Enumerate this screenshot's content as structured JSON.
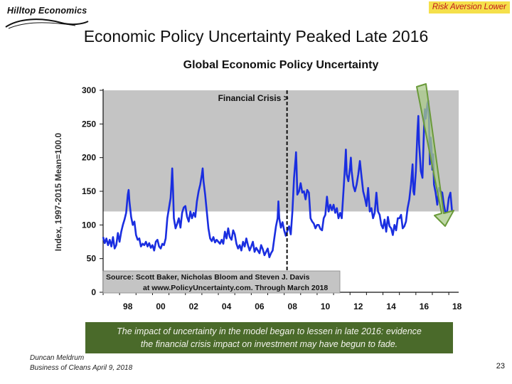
{
  "header": {
    "logo_text": "Hilltop Economics",
    "badge": "Risk Aversion Lower",
    "slide_title": "Economic Policy Uncertainty Peaked Late 2016"
  },
  "caption": {
    "line1": "The impact of uncertainty in the model began to lessen in late 2016: evidence",
    "line2": "the financial crisis impact on investment may have begun to fade."
  },
  "footer": {
    "author": "Duncan Meldrum",
    "event": "Business of Cleans April 9, 2018",
    "page_number": "23"
  },
  "colors": {
    "series": "#1a2ee0",
    "shade": "#c4c4c4",
    "arrow_fill": "#a9c98a",
    "arrow_stroke": "#6a9a3a",
    "badge_bg": "#f5e04b",
    "badge_text": "#c0151b",
    "caption_bg": "#4a6a2a"
  },
  "chart_data": {
    "type": "line",
    "title": "Global Economic Policy Uncertainty",
    "ylabel": "Index, 1997-2015 Mean=100.0",
    "xlabel": "",
    "ylim": [
      0,
      300
    ],
    "xlim": [
      1997.0,
      2018.6
    ],
    "yticks": [
      "0",
      "50",
      "100",
      "150",
      "200",
      "250",
      "300"
    ],
    "xtick_labels": [
      "98",
      "00",
      "02",
      "04",
      "06",
      "08",
      "10",
      "12",
      "14",
      "16",
      "18"
    ],
    "grid": false,
    "shaded_region": {
      "y_from": 120,
      "y_to": 300
    },
    "annotation": {
      "label": "Financial Crisis >",
      "x": 2008.0
    },
    "source_box": [
      "Source: Scott Baker, Nicholas Bloom and Steven J. Davis",
      "at www.PolicyUncertainty.com. Through March 2018"
    ],
    "series": [
      {
        "values": [
          [
            1997.0,
            82
          ],
          [
            1997.1,
            73
          ],
          [
            1997.2,
            80
          ],
          [
            1997.3,
            70
          ],
          [
            1997.4,
            78
          ],
          [
            1997.5,
            68
          ],
          [
            1997.6,
            82
          ],
          [
            1997.7,
            65
          ],
          [
            1997.8,
            70
          ],
          [
            1997.9,
            88
          ],
          [
            1998.0,
            75
          ],
          [
            1998.1,
            90
          ],
          [
            1998.2,
            100
          ],
          [
            1998.3,
            108
          ],
          [
            1998.4,
            118
          ],
          [
            1998.5,
            145
          ],
          [
            1998.55,
            152
          ],
          [
            1998.6,
            135
          ],
          [
            1998.7,
            112
          ],
          [
            1998.8,
            100
          ],
          [
            1998.9,
            105
          ],
          [
            1999.0,
            85
          ],
          [
            1999.1,
            78
          ],
          [
            1999.2,
            80
          ],
          [
            1999.3,
            68
          ],
          [
            1999.4,
            72
          ],
          [
            1999.5,
            70
          ],
          [
            1999.6,
            75
          ],
          [
            1999.7,
            68
          ],
          [
            1999.8,
            73
          ],
          [
            1999.9,
            66
          ],
          [
            2000.0,
            70
          ],
          [
            2000.1,
            62
          ],
          [
            2000.2,
            75
          ],
          [
            2000.3,
            78
          ],
          [
            2000.4,
            68
          ],
          [
            2000.5,
            65
          ],
          [
            2000.6,
            72
          ],
          [
            2000.7,
            70
          ],
          [
            2000.8,
            80
          ],
          [
            2000.9,
            110
          ],
          [
            2001.0,
            125
          ],
          [
            2001.1,
            140
          ],
          [
            2001.15,
            160
          ],
          [
            2001.2,
            184
          ],
          [
            2001.25,
            150
          ],
          [
            2001.3,
            110
          ],
          [
            2001.4,
            95
          ],
          [
            2001.5,
            102
          ],
          [
            2001.6,
            110
          ],
          [
            2001.7,
            96
          ],
          [
            2001.8,
            118
          ],
          [
            2001.9,
            126
          ],
          [
            2002.0,
            128
          ],
          [
            2002.1,
            112
          ],
          [
            2002.2,
            105
          ],
          [
            2002.3,
            120
          ],
          [
            2002.4,
            110
          ],
          [
            2002.5,
            118
          ],
          [
            2002.6,
            112
          ],
          [
            2002.7,
            135
          ],
          [
            2002.8,
            150
          ],
          [
            2002.9,
            160
          ],
          [
            2003.0,
            175
          ],
          [
            2003.05,
            184
          ],
          [
            2003.1,
            165
          ],
          [
            2003.2,
            145
          ],
          [
            2003.3,
            120
          ],
          [
            2003.4,
            95
          ],
          [
            2003.5,
            80
          ],
          [
            2003.6,
            76
          ],
          [
            2003.7,
            82
          ],
          [
            2003.8,
            74
          ],
          [
            2003.9,
            78
          ],
          [
            2004.0,
            75
          ],
          [
            2004.1,
            72
          ],
          [
            2004.2,
            78
          ],
          [
            2004.3,
            72
          ],
          [
            2004.4,
            90
          ],
          [
            2004.5,
            80
          ],
          [
            2004.6,
            95
          ],
          [
            2004.7,
            82
          ],
          [
            2004.8,
            78
          ],
          [
            2004.9,
            92
          ],
          [
            2005.0,
            86
          ],
          [
            2005.1,
            72
          ],
          [
            2005.2,
            65
          ],
          [
            2005.3,
            70
          ],
          [
            2005.4,
            62
          ],
          [
            2005.5,
            75
          ],
          [
            2005.6,
            68
          ],
          [
            2005.7,
            80
          ],
          [
            2005.8,
            70
          ],
          [
            2005.9,
            62
          ],
          [
            2006.0,
            68
          ],
          [
            2006.1,
            75
          ],
          [
            2006.2,
            60
          ],
          [
            2006.3,
            66
          ],
          [
            2006.4,
            62
          ],
          [
            2006.5,
            58
          ],
          [
            2006.6,
            70
          ],
          [
            2006.7,
            64
          ],
          [
            2006.8,
            55
          ],
          [
            2006.9,
            60
          ],
          [
            2007.0,
            65
          ],
          [
            2007.1,
            52
          ],
          [
            2007.2,
            58
          ],
          [
            2007.3,
            62
          ],
          [
            2007.4,
            80
          ],
          [
            2007.5,
            98
          ],
          [
            2007.6,
            110
          ],
          [
            2007.65,
            135
          ],
          [
            2007.7,
            110
          ],
          [
            2007.8,
            96
          ],
          [
            2007.9,
            104
          ],
          [
            2008.0,
            92
          ],
          [
            2008.1,
            84
          ],
          [
            2008.2,
            92
          ],
          [
            2008.3,
            98
          ],
          [
            2008.4,
            86
          ],
          [
            2008.5,
            120
          ],
          [
            2008.6,
            170
          ],
          [
            2008.7,
            200
          ],
          [
            2008.72,
            208
          ],
          [
            2008.75,
            188
          ],
          [
            2008.8,
            145
          ],
          [
            2008.9,
            150
          ],
          [
            2009.0,
            162
          ],
          [
            2009.1,
            148
          ],
          [
            2009.2,
            150
          ],
          [
            2009.3,
            138
          ],
          [
            2009.4,
            152
          ],
          [
            2009.5,
            148
          ],
          [
            2009.6,
            110
          ],
          [
            2009.7,
            105
          ],
          [
            2009.8,
            102
          ],
          [
            2009.9,
            95
          ],
          [
            2010.0,
            100
          ],
          [
            2010.1,
            100
          ],
          [
            2010.2,
            94
          ],
          [
            2010.3,
            92
          ],
          [
            2010.4,
            110
          ],
          [
            2010.5,
            115
          ],
          [
            2010.6,
            142
          ],
          [
            2010.7,
            120
          ],
          [
            2010.8,
            130
          ],
          [
            2010.9,
            122
          ],
          [
            2011.0,
            130
          ],
          [
            2011.1,
            118
          ],
          [
            2011.2,
            125
          ],
          [
            2011.3,
            110
          ],
          [
            2011.4,
            118
          ],
          [
            2011.5,
            110
          ],
          [
            2011.6,
            150
          ],
          [
            2011.7,
            190
          ],
          [
            2011.75,
            212
          ],
          [
            2011.8,
            175
          ],
          [
            2011.9,
            165
          ],
          [
            2012.0,
            185
          ],
          [
            2012.05,
            200
          ],
          [
            2012.1,
            180
          ],
          [
            2012.2,
            158
          ],
          [
            2012.3,
            150
          ],
          [
            2012.4,
            160
          ],
          [
            2012.5,
            175
          ],
          [
            2012.6,
            195
          ],
          [
            2012.7,
            172
          ],
          [
            2012.8,
            150
          ],
          [
            2012.9,
            140
          ],
          [
            2013.0,
            128
          ],
          [
            2013.1,
            155
          ],
          [
            2013.2,
            120
          ],
          [
            2013.3,
            125
          ],
          [
            2013.4,
            110
          ],
          [
            2013.5,
            118
          ],
          [
            2013.6,
            148
          ],
          [
            2013.7,
            120
          ],
          [
            2013.8,
            115
          ],
          [
            2013.9,
            100
          ],
          [
            2014.0,
            95
          ],
          [
            2014.1,
            108
          ],
          [
            2014.2,
            90
          ],
          [
            2014.3,
            112
          ],
          [
            2014.4,
            98
          ],
          [
            2014.5,
            95
          ],
          [
            2014.6,
            85
          ],
          [
            2014.7,
            100
          ],
          [
            2014.8,
            92
          ],
          [
            2014.9,
            110
          ],
          [
            2015.0,
            110
          ],
          [
            2015.1,
            115
          ],
          [
            2015.2,
            95
          ],
          [
            2015.3,
            98
          ],
          [
            2015.4,
            105
          ],
          [
            2015.5,
            125
          ],
          [
            2015.6,
            138
          ],
          [
            2015.7,
            160
          ],
          [
            2015.8,
            190
          ],
          [
            2015.85,
            150
          ],
          [
            2015.9,
            145
          ],
          [
            2016.0,
            180
          ],
          [
            2016.1,
            240
          ],
          [
            2016.15,
            262
          ],
          [
            2016.2,
            220
          ],
          [
            2016.3,
            180
          ],
          [
            2016.4,
            170
          ],
          [
            2016.5,
            248
          ],
          [
            2016.55,
            272
          ],
          [
            2016.6,
            258
          ],
          [
            2016.7,
            280
          ],
          [
            2016.75,
            284
          ],
          [
            2016.8,
            255
          ],
          [
            2016.85,
            190
          ],
          [
            2016.9,
            230
          ],
          [
            2016.95,
            215
          ],
          [
            2017.0,
            182
          ],
          [
            2017.05,
            205
          ],
          [
            2017.1,
            160
          ],
          [
            2017.2,
            148
          ],
          [
            2017.3,
            130
          ],
          [
            2017.4,
            155
          ],
          [
            2017.5,
            150
          ],
          [
            2017.6,
            148
          ],
          [
            2017.7,
            130
          ],
          [
            2017.8,
            118
          ],
          [
            2017.9,
            120
          ],
          [
            2018.0,
            140
          ],
          [
            2018.1,
            148
          ],
          [
            2018.2,
            120
          ]
        ]
      }
    ]
  }
}
